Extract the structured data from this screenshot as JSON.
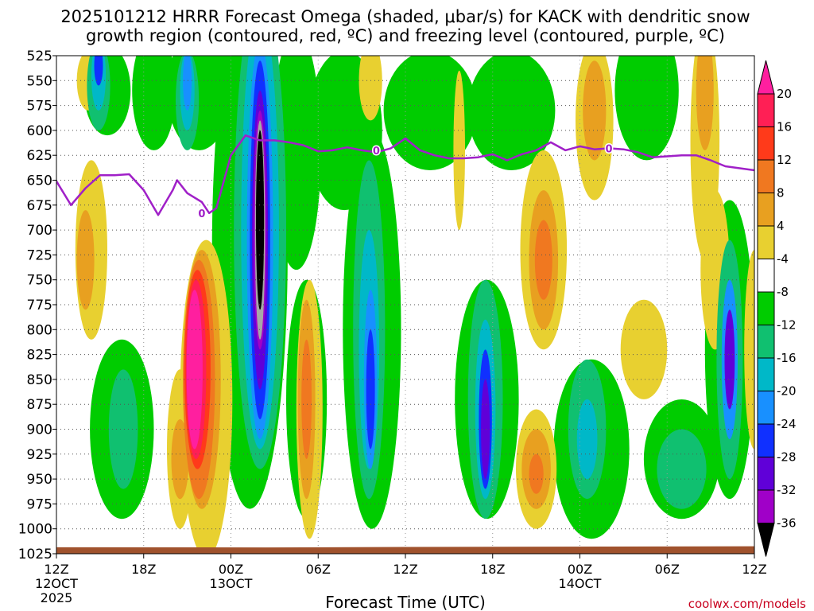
{
  "chart_data": {
    "type": "heatmap",
    "title_line1": "2025101212 HRRR Forecast Omega (shaded, μbar/s) for KACK with dendritic snow",
    "title_line2": "growth region (contoured, red, ºC) and freezing level (contoured, purple, ºC)",
    "xlabel": "Forecast Time (UTC)",
    "ylabel": "",
    "credit": "coolwx.com/models",
    "x_range_hours": [
      0,
      48
    ],
    "y_range_hpa": [
      525,
      1025
    ],
    "y_ticks": [
      525,
      550,
      575,
      600,
      625,
      650,
      675,
      700,
      725,
      750,
      775,
      800,
      825,
      850,
      875,
      900,
      925,
      950,
      975,
      1000,
      1025
    ],
    "x_ticks": [
      {
        "hour": 0,
        "label": "12Z",
        "day": "12OCT",
        "year": "2025"
      },
      {
        "hour": 6,
        "label": "18Z"
      },
      {
        "hour": 12,
        "label": "00Z",
        "day": "13OCT"
      },
      {
        "hour": 18,
        "label": "06Z"
      },
      {
        "hour": 24,
        "label": "12Z"
      },
      {
        "hour": 30,
        "label": "18Z"
      },
      {
        "hour": 36,
        "label": "00Z",
        "day": "14OCT"
      },
      {
        "hour": 42,
        "label": "06Z"
      },
      {
        "hour": 48,
        "label": "12Z"
      }
    ],
    "colorbar": {
      "levels": [
        20,
        16,
        12,
        8,
        4,
        -4,
        -8,
        -12,
        -16,
        -20,
        -24,
        -28,
        -32,
        -36
      ],
      "colors": [
        "#ff1f55",
        "#ff3a1a",
        "#f07820",
        "#e8a020",
        "#e8d030",
        "#ffffff",
        "#00cc00",
        "#10c070",
        "#00b8c8",
        "#1890ff",
        "#1030ff",
        "#6000d8",
        "#a000c8",
        "#a8a8a8",
        "#000000"
      ],
      "top_cap_color": "#ff1f9f",
      "bottom_cap_color": "#000000"
    },
    "freezing_level": {
      "label": "0",
      "color": "#a020c8",
      "points": [
        [
          0,
          651
        ],
        [
          1,
          675
        ],
        [
          2,
          658
        ],
        [
          3,
          645
        ],
        [
          4,
          645
        ],
        [
          5,
          644
        ],
        [
          6,
          660
        ],
        [
          7,
          685
        ],
        [
          8,
          660
        ],
        [
          8.3,
          650
        ],
        [
          9,
          663
        ],
        [
          10,
          672
        ],
        [
          10.5,
          683
        ],
        [
          11,
          678
        ],
        [
          12,
          625
        ],
        [
          13,
          605
        ],
        [
          14,
          610
        ],
        [
          15,
          610
        ],
        [
          16,
          612
        ],
        [
          17,
          615
        ],
        [
          18,
          621
        ],
        [
          19,
          620
        ],
        [
          20,
          617
        ],
        [
          21,
          620
        ],
        [
          22,
          622
        ],
        [
          23,
          618
        ],
        [
          24,
          608
        ],
        [
          25,
          620
        ],
        [
          26,
          625
        ],
        [
          27,
          628
        ],
        [
          28,
          628
        ],
        [
          29,
          627
        ],
        [
          30,
          624
        ],
        [
          31,
          630
        ],
        [
          32,
          624
        ],
        [
          33,
          620
        ],
        [
          34,
          612
        ],
        [
          35,
          620
        ],
        [
          36,
          616
        ],
        [
          37,
          619
        ],
        [
          38,
          618
        ],
        [
          39,
          619
        ],
        [
          40,
          622
        ],
        [
          41,
          627
        ],
        [
          42,
          626
        ],
        [
          43,
          625
        ],
        [
          44,
          625
        ],
        [
          45,
          630
        ],
        [
          46,
          636
        ],
        [
          47,
          638
        ],
        [
          48,
          640
        ]
      ],
      "label_positions": [
        [
          10.0,
          683
        ],
        [
          22.0,
          620
        ],
        [
          38.0,
          618
        ]
      ]
    },
    "terrain_color": "#a0522d"
  }
}
